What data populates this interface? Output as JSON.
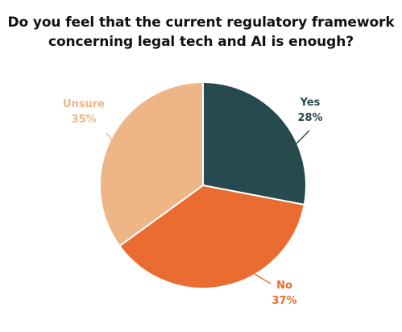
{
  "chart_data": {
    "type": "pie",
    "title_lines": [
      "Do you feel that the current regulatory framework",
      "concerning legal tech and AI is enough?"
    ],
    "slices": [
      {
        "label": "Yes",
        "value": 28,
        "value_label": "28%",
        "color": "#264a4e"
      },
      {
        "label": "No",
        "value": 37,
        "value_label": "37%",
        "color": "#eb6c30"
      },
      {
        "label": "Unsure",
        "value": 35,
        "value_label": "35%",
        "color": "#eeb586"
      }
    ],
    "legend": "none",
    "start": "top",
    "direction": "clockwise"
  }
}
